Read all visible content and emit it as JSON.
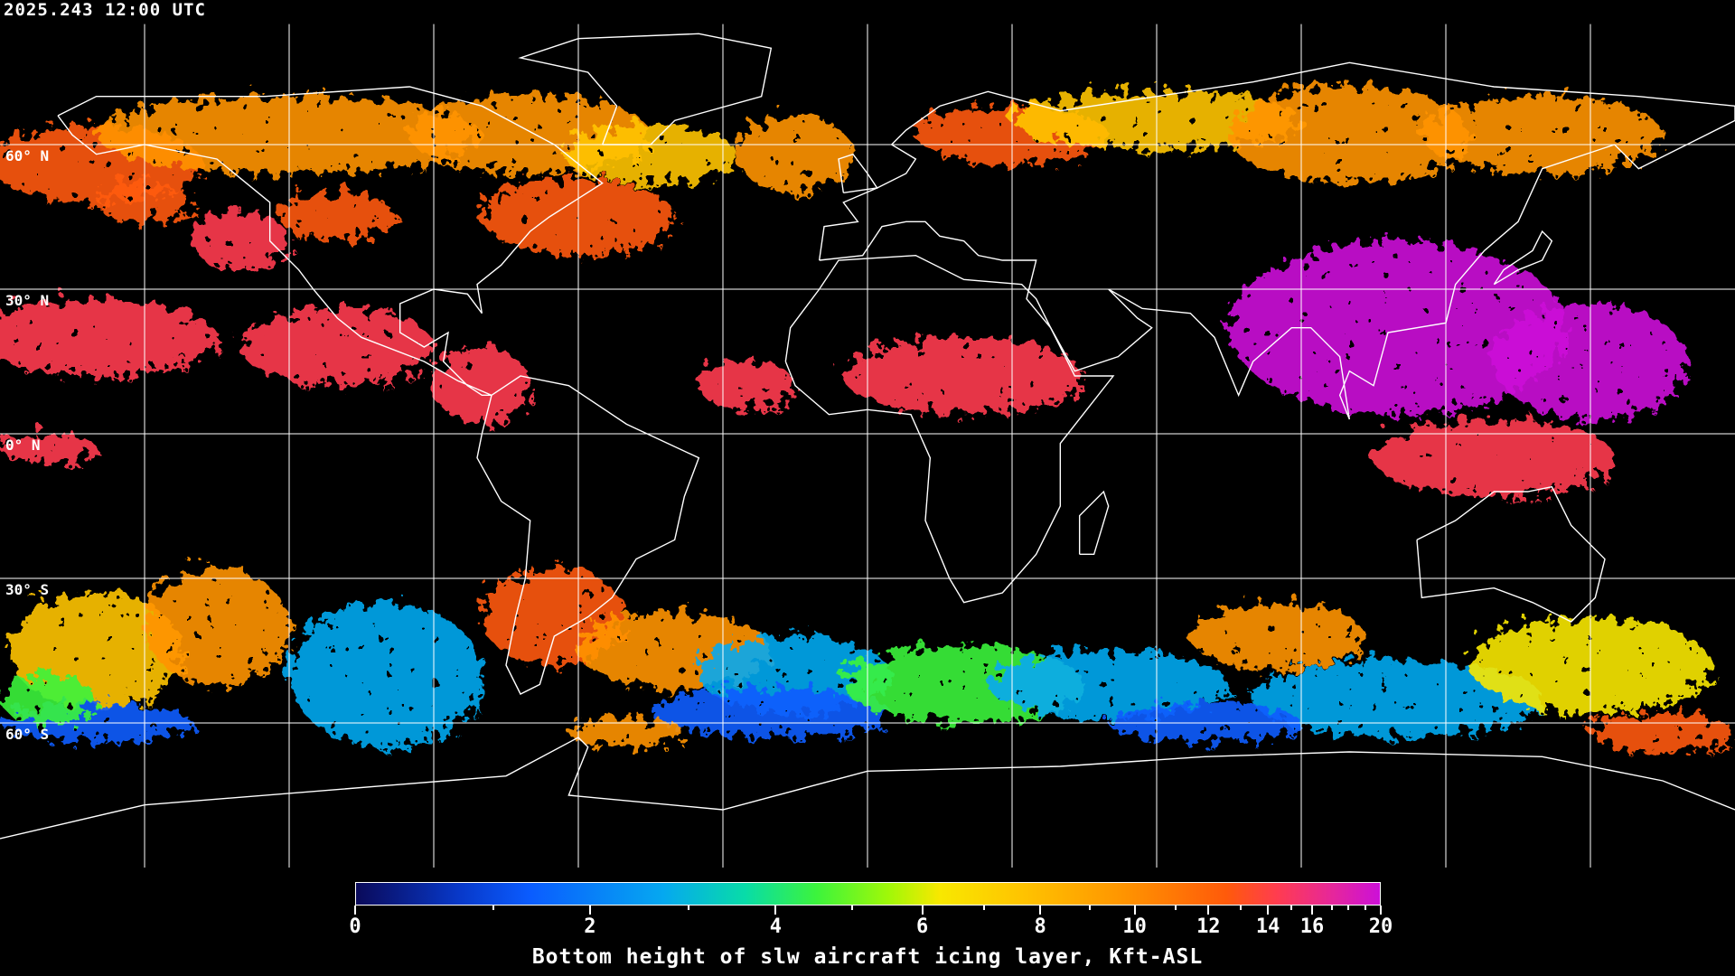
{
  "timestamp": "2025.243 12:00 UTC",
  "map": {
    "projection": "equirectangular",
    "lon_range": [
      -180,
      180
    ],
    "lat_range": [
      -90,
      90
    ],
    "grid_spacing_deg": 30,
    "background": "#000000",
    "coastline_color": "#ffffff",
    "lat_labels": [
      "60° N",
      "30° N",
      "0° N",
      "30° S",
      "60° S"
    ]
  },
  "colorbar": {
    "title": "Bottom height of slw aircraft icing layer, Kft-ASL",
    "ticks": [
      "0",
      "2",
      "4",
      "6",
      "8",
      "10",
      "12",
      "14",
      "16",
      "20"
    ],
    "range": [
      0,
      20
    ],
    "colors": [
      "#0a0a5a",
      "#0a5cff",
      "#05a8f0",
      "#3cf43c",
      "#f8e800",
      "#ffc400",
      "#ff9400",
      "#ff5a0a",
      "#ff3c50",
      "#cc10d8"
    ]
  }
}
